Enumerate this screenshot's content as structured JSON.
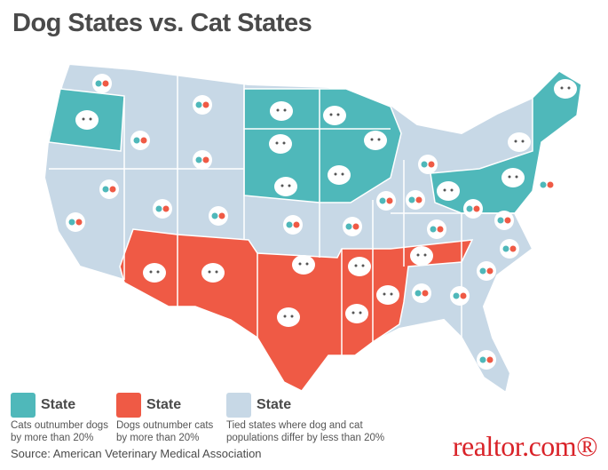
{
  "title": "Dog States vs. Cat States",
  "legend": [
    {
      "label": "State",
      "description": "Cats outnumber dogs by more than 20%"
    },
    {
      "label": "State",
      "description": "Dogs outnumber cats by more than 20%"
    },
    {
      "label": "State",
      "description": "Tied states where dog and cat populations differ by less than 20%"
    }
  ],
  "source": "Source: American Veterinary Medical Association",
  "logo": "realtor.com®"
}
